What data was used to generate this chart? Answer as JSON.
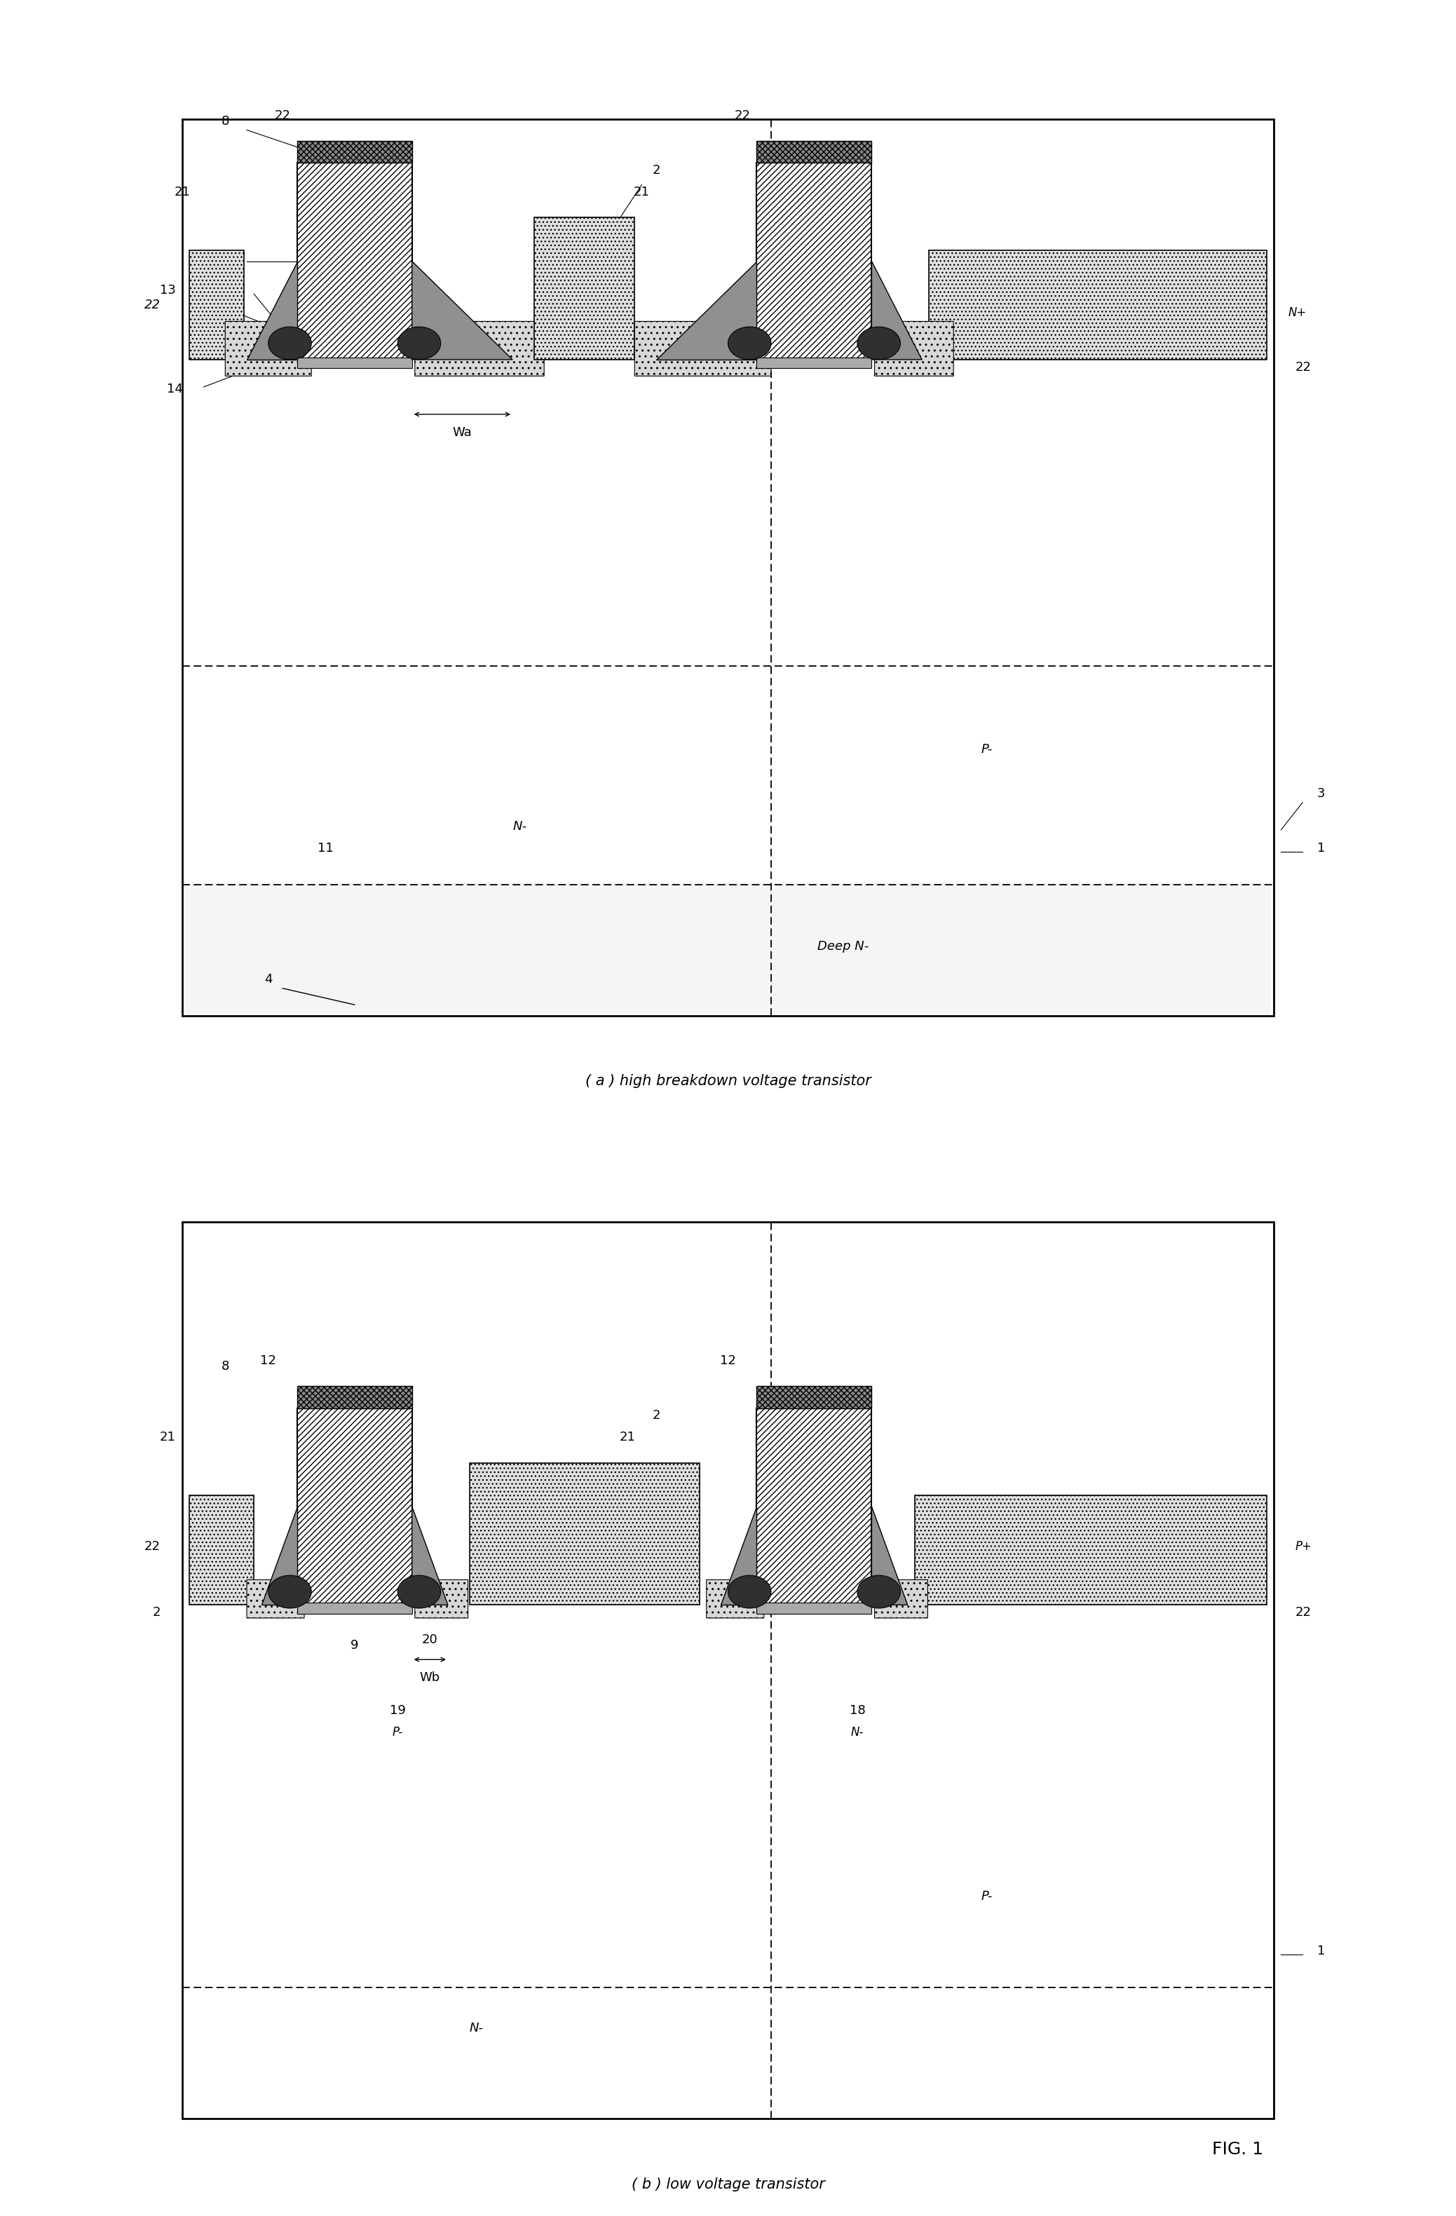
{
  "title": "FIG. 1",
  "subtitle_a": "( a ) high breakdown voltage transistor",
  "subtitle_b": "( b ) low voltage transistor",
  "bg_color": "#ffffff",
  "line_color": "#000000",
  "hatch_diagonal": "////",
  "hatch_cross": "xxxx",
  "label_a": "(a)",
  "label_b": "(b)"
}
